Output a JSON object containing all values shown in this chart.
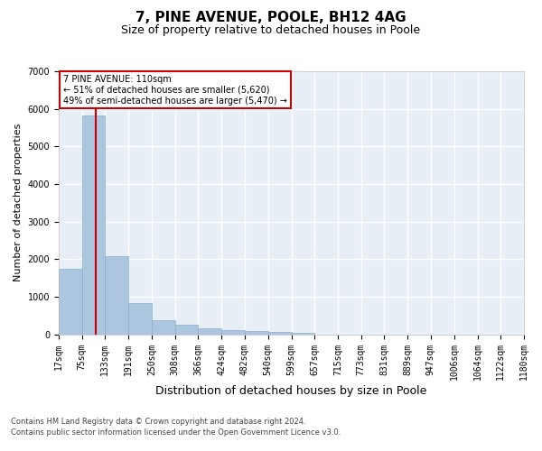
{
  "title_line1": "7, PINE AVENUE, POOLE, BH12 4AG",
  "title_line2": "Size of property relative to detached houses in Poole",
  "xlabel": "Distribution of detached houses by size in Poole",
  "ylabel": "Number of detached properties",
  "bar_color": "#adc6e0",
  "bar_edge_color": "#8aafc8",
  "background_color": "#e8eef6",
  "grid_color": "#ffffff",
  "annotation_text": "7 PINE AVENUE: 110sqm\n← 51% of detached houses are smaller (5,620)\n49% of semi-detached houses are larger (5,470) →",
  "property_line_x": 110,
  "property_line_color": "#cc0000",
  "footnote1": "Contains HM Land Registry data © Crown copyright and database right 2024.",
  "footnote2": "Contains public sector information licensed under the Open Government Licence v3.0.",
  "bin_edges": [
    17,
    75,
    133,
    191,
    250,
    308,
    366,
    424,
    482,
    540,
    599,
    657,
    715,
    773,
    831,
    889,
    947,
    1006,
    1064,
    1122,
    1180
  ],
  "bin_heights": [
    1750,
    5820,
    2080,
    820,
    370,
    250,
    150,
    110,
    75,
    55,
    40,
    0,
    0,
    0,
    0,
    0,
    0,
    0,
    0,
    0
  ],
  "ylim": [
    0,
    7000
  ],
  "yticks": [
    0,
    1000,
    2000,
    3000,
    4000,
    5000,
    6000,
    7000
  ],
  "title_fontsize": 11,
  "subtitle_fontsize": 9,
  "tick_fontsize": 7,
  "xlabel_fontsize": 9,
  "ylabel_fontsize": 8
}
